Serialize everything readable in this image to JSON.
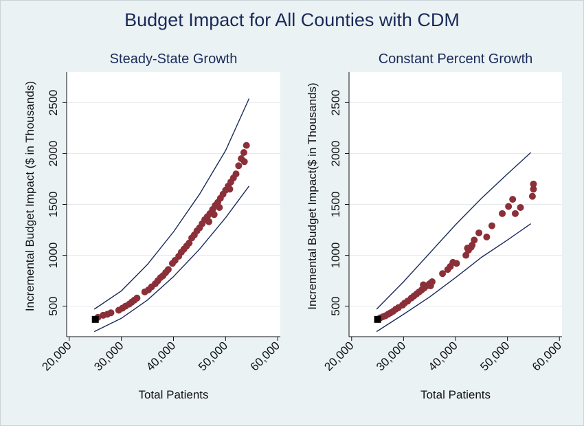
{
  "title": "Budget Impact for All Counties with CDM",
  "colors": {
    "background": "#eaf2f3",
    "plot_area": "#ffffff",
    "points": "#8b2f38",
    "bounds": "#1a2a5a",
    "baseline_marker": "#000000"
  },
  "chart_data": [
    {
      "type": "scatter",
      "title": "Steady-State Growth",
      "xlabel": "Total Patients",
      "ylabel": "Incremental Budget Impact ($ in Thousands)",
      "xticks": [
        "20,000",
        "30,000",
        "40,000",
        "50,000",
        "60,000"
      ],
      "xtick_values": [
        20000,
        30000,
        40000,
        50000,
        60000
      ],
      "yticks": [
        "500",
        "1000",
        "1500",
        "2000",
        "2500"
      ],
      "ytick_values": [
        500,
        1000,
        1500,
        2000,
        2500
      ],
      "xlim": [
        19500,
        60500
      ],
      "ylim": [
        200,
        2800
      ],
      "grid": "horizontal",
      "baseline_point": {
        "x": 25000,
        "y": 370
      },
      "points": [
        [
          25500,
          390
        ],
        [
          26500,
          410
        ],
        [
          27300,
          420
        ],
        [
          28000,
          435
        ],
        [
          29500,
          460
        ],
        [
          30200,
          480
        ],
        [
          30800,
          500
        ],
        [
          31500,
          520
        ],
        [
          32000,
          540
        ],
        [
          32500,
          560
        ],
        [
          33000,
          580
        ],
        [
          34500,
          640
        ],
        [
          35200,
          660
        ],
        [
          35800,
          690
        ],
        [
          36500,
          720
        ],
        [
          37000,
          750
        ],
        [
          37500,
          780
        ],
        [
          38000,
          800
        ],
        [
          38500,
          830
        ],
        [
          39000,
          860
        ],
        [
          39800,
          920
        ],
        [
          40300,
          950
        ],
        [
          41000,
          990
        ],
        [
          41500,
          1030
        ],
        [
          42000,
          1060
        ],
        [
          42500,
          1090
        ],
        [
          43000,
          1120
        ],
        [
          43500,
          1170
        ],
        [
          44000,
          1200
        ],
        [
          44500,
          1240
        ],
        [
          45000,
          1270
        ],
        [
          45500,
          1310
        ],
        [
          46000,
          1350
        ],
        [
          46500,
          1380
        ],
        [
          47000,
          1410
        ],
        [
          47500,
          1450
        ],
        [
          48000,
          1490
        ],
        [
          48500,
          1520
        ],
        [
          49000,
          1560
        ],
        [
          49500,
          1600
        ],
        [
          50000,
          1640
        ],
        [
          50500,
          1680
        ],
        [
          51000,
          1720
        ],
        [
          51500,
          1760
        ],
        [
          52000,
          1800
        ],
        [
          52500,
          1880
        ],
        [
          53000,
          1950
        ],
        [
          53500,
          2010
        ],
        [
          54000,
          2080
        ],
        [
          46800,
          1330
        ],
        [
          47800,
          1400
        ],
        [
          48800,
          1470
        ],
        [
          50800,
          1650
        ],
        [
          53600,
          1920
        ]
      ],
      "upper_bound": [
        [
          24800,
          470
        ],
        [
          30000,
          650
        ],
        [
          35000,
          910
        ],
        [
          40000,
          1230
        ],
        [
          45000,
          1600
        ],
        [
          50000,
          2030
        ],
        [
          54500,
          2540
        ]
      ],
      "lower_bound": [
        [
          24800,
          250
        ],
        [
          30000,
          380
        ],
        [
          35000,
          560
        ],
        [
          40000,
          790
        ],
        [
          45000,
          1060
        ],
        [
          50000,
          1370
        ],
        [
          54500,
          1680
        ]
      ]
    },
    {
      "type": "scatter",
      "title": "Constant Percent Growth",
      "xlabel": "Total Patients",
      "ylabel": "Incremental Budget Impact($ in Thousands)",
      "xticks": [
        "20,000",
        "30,000",
        "40,000",
        "50,000",
        "60,000"
      ],
      "xtick_values": [
        20000,
        30000,
        40000,
        50000,
        60000
      ],
      "yticks": [
        "500",
        "1000",
        "1500",
        "2000",
        "2500"
      ],
      "ytick_values": [
        500,
        1000,
        1500,
        2000,
        2500
      ],
      "xlim": [
        19500,
        60500
      ],
      "ylim": [
        200,
        2800
      ],
      "grid": "horizontal",
      "baseline_point": {
        "x": 25000,
        "y": 370
      },
      "points": [
        [
          25500,
          385
        ],
        [
          26000,
          395
        ],
        [
          26500,
          405
        ],
        [
          27000,
          420
        ],
        [
          27500,
          435
        ],
        [
          28000,
          450
        ],
        [
          28500,
          470
        ],
        [
          29000,
          485
        ],
        [
          29800,
          510
        ],
        [
          30200,
          530
        ],
        [
          30800,
          550
        ],
        [
          31500,
          580
        ],
        [
          32000,
          600
        ],
        [
          32500,
          620
        ],
        [
          33000,
          640
        ],
        [
          33500,
          660
        ],
        [
          34000,
          680
        ],
        [
          34500,
          700
        ],
        [
          35000,
          720
        ],
        [
          35500,
          740
        ],
        [
          37500,
          820
        ],
        [
          38500,
          860
        ],
        [
          39000,
          890
        ],
        [
          39500,
          930
        ],
        [
          40200,
          920
        ],
        [
          42000,
          1000
        ],
        [
          42500,
          1050
        ],
        [
          43000,
          1080
        ],
        [
          43600,
          1150
        ],
        [
          44500,
          1220
        ],
        [
          46000,
          1180
        ],
        [
          47000,
          1290
        ],
        [
          49000,
          1410
        ],
        [
          50200,
          1480
        ],
        [
          51000,
          1550
        ],
        [
          51500,
          1410
        ],
        [
          52500,
          1470
        ],
        [
          54800,
          1580
        ],
        [
          55000,
          1650
        ],
        [
          55000,
          1700
        ],
        [
          33800,
          710
        ],
        [
          35200,
          700
        ],
        [
          42300,
          1070
        ],
        [
          43200,
          1100
        ]
      ],
      "upper_bound": [
        [
          24800,
          470
        ],
        [
          30000,
          740
        ],
        [
          35000,
          1020
        ],
        [
          40000,
          1300
        ],
        [
          45000,
          1560
        ],
        [
          50000,
          1800
        ],
        [
          54500,
          2010
        ]
      ],
      "lower_bound": [
        [
          24800,
          250
        ],
        [
          30000,
          420
        ],
        [
          35000,
          590
        ],
        [
          40000,
          780
        ],
        [
          45000,
          980
        ],
        [
          50000,
          1150
        ],
        [
          54500,
          1310
        ]
      ]
    }
  ]
}
